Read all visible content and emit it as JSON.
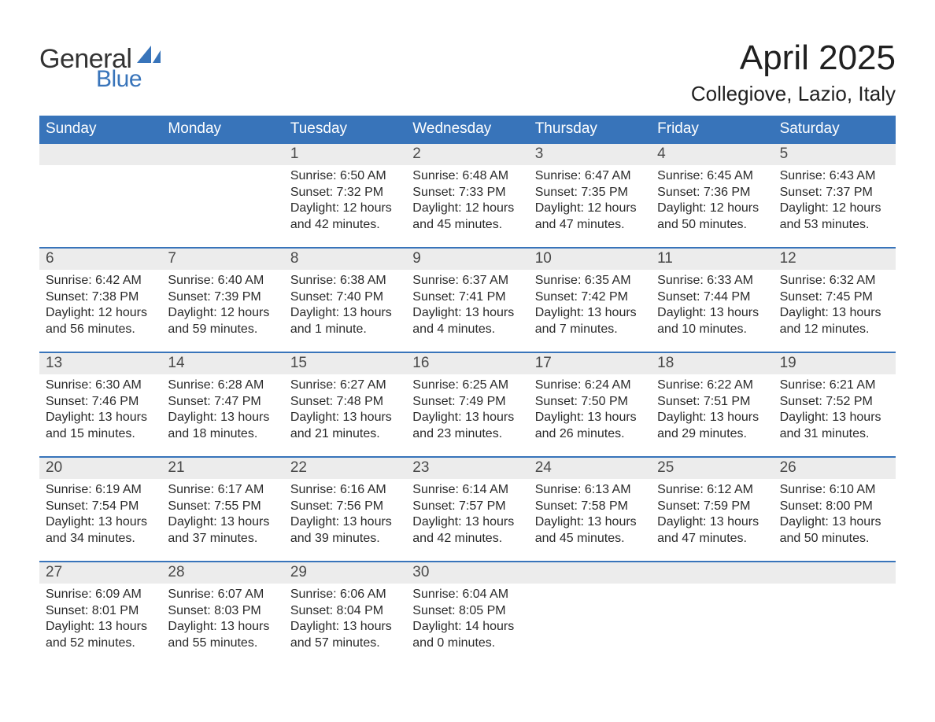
{
  "logo": {
    "general": "General",
    "blue": "Blue",
    "brand_color": "#3874ba"
  },
  "title": "April 2025",
  "location": "Collegiove, Lazio, Italy",
  "colors": {
    "header_bg": "#3874ba",
    "header_text": "#ffffff",
    "daynum_bg": "#ececec",
    "daynum_text": "#4a4a4a",
    "body_text": "#2a2a2a",
    "rule": "#3874ba",
    "page_bg": "#ffffff"
  },
  "typography": {
    "title_fontsize": 44,
    "location_fontsize": 26,
    "weekday_fontsize": 19,
    "daynum_fontsize": 19,
    "body_fontsize": 16,
    "font_family": "Arial"
  },
  "weekdays": [
    "Sunday",
    "Monday",
    "Tuesday",
    "Wednesday",
    "Thursday",
    "Friday",
    "Saturday"
  ],
  "weeks": [
    [
      {
        "day": "",
        "sunrise": "",
        "sunset": "",
        "daylight": ""
      },
      {
        "day": "",
        "sunrise": "",
        "sunset": "",
        "daylight": ""
      },
      {
        "day": "1",
        "sunrise": "Sunrise: 6:50 AM",
        "sunset": "Sunset: 7:32 PM",
        "daylight": "Daylight: 12 hours and 42 minutes."
      },
      {
        "day": "2",
        "sunrise": "Sunrise: 6:48 AM",
        "sunset": "Sunset: 7:33 PM",
        "daylight": "Daylight: 12 hours and 45 minutes."
      },
      {
        "day": "3",
        "sunrise": "Sunrise: 6:47 AM",
        "sunset": "Sunset: 7:35 PM",
        "daylight": "Daylight: 12 hours and 47 minutes."
      },
      {
        "day": "4",
        "sunrise": "Sunrise: 6:45 AM",
        "sunset": "Sunset: 7:36 PM",
        "daylight": "Daylight: 12 hours and 50 minutes."
      },
      {
        "day": "5",
        "sunrise": "Sunrise: 6:43 AM",
        "sunset": "Sunset: 7:37 PM",
        "daylight": "Daylight: 12 hours and 53 minutes."
      }
    ],
    [
      {
        "day": "6",
        "sunrise": "Sunrise: 6:42 AM",
        "sunset": "Sunset: 7:38 PM",
        "daylight": "Daylight: 12 hours and 56 minutes."
      },
      {
        "day": "7",
        "sunrise": "Sunrise: 6:40 AM",
        "sunset": "Sunset: 7:39 PM",
        "daylight": "Daylight: 12 hours and 59 minutes."
      },
      {
        "day": "8",
        "sunrise": "Sunrise: 6:38 AM",
        "sunset": "Sunset: 7:40 PM",
        "daylight": "Daylight: 13 hours and 1 minute."
      },
      {
        "day": "9",
        "sunrise": "Sunrise: 6:37 AM",
        "sunset": "Sunset: 7:41 PM",
        "daylight": "Daylight: 13 hours and 4 minutes."
      },
      {
        "day": "10",
        "sunrise": "Sunrise: 6:35 AM",
        "sunset": "Sunset: 7:42 PM",
        "daylight": "Daylight: 13 hours and 7 minutes."
      },
      {
        "day": "11",
        "sunrise": "Sunrise: 6:33 AM",
        "sunset": "Sunset: 7:44 PM",
        "daylight": "Daylight: 13 hours and 10 minutes."
      },
      {
        "day": "12",
        "sunrise": "Sunrise: 6:32 AM",
        "sunset": "Sunset: 7:45 PM",
        "daylight": "Daylight: 13 hours and 12 minutes."
      }
    ],
    [
      {
        "day": "13",
        "sunrise": "Sunrise: 6:30 AM",
        "sunset": "Sunset: 7:46 PM",
        "daylight": "Daylight: 13 hours and 15 minutes."
      },
      {
        "day": "14",
        "sunrise": "Sunrise: 6:28 AM",
        "sunset": "Sunset: 7:47 PM",
        "daylight": "Daylight: 13 hours and 18 minutes."
      },
      {
        "day": "15",
        "sunrise": "Sunrise: 6:27 AM",
        "sunset": "Sunset: 7:48 PM",
        "daylight": "Daylight: 13 hours and 21 minutes."
      },
      {
        "day": "16",
        "sunrise": "Sunrise: 6:25 AM",
        "sunset": "Sunset: 7:49 PM",
        "daylight": "Daylight: 13 hours and 23 minutes."
      },
      {
        "day": "17",
        "sunrise": "Sunrise: 6:24 AM",
        "sunset": "Sunset: 7:50 PM",
        "daylight": "Daylight: 13 hours and 26 minutes."
      },
      {
        "day": "18",
        "sunrise": "Sunrise: 6:22 AM",
        "sunset": "Sunset: 7:51 PM",
        "daylight": "Daylight: 13 hours and 29 minutes."
      },
      {
        "day": "19",
        "sunrise": "Sunrise: 6:21 AM",
        "sunset": "Sunset: 7:52 PM",
        "daylight": "Daylight: 13 hours and 31 minutes."
      }
    ],
    [
      {
        "day": "20",
        "sunrise": "Sunrise: 6:19 AM",
        "sunset": "Sunset: 7:54 PM",
        "daylight": "Daylight: 13 hours and 34 minutes."
      },
      {
        "day": "21",
        "sunrise": "Sunrise: 6:17 AM",
        "sunset": "Sunset: 7:55 PM",
        "daylight": "Daylight: 13 hours and 37 minutes."
      },
      {
        "day": "22",
        "sunrise": "Sunrise: 6:16 AM",
        "sunset": "Sunset: 7:56 PM",
        "daylight": "Daylight: 13 hours and 39 minutes."
      },
      {
        "day": "23",
        "sunrise": "Sunrise: 6:14 AM",
        "sunset": "Sunset: 7:57 PM",
        "daylight": "Daylight: 13 hours and 42 minutes."
      },
      {
        "day": "24",
        "sunrise": "Sunrise: 6:13 AM",
        "sunset": "Sunset: 7:58 PM",
        "daylight": "Daylight: 13 hours and 45 minutes."
      },
      {
        "day": "25",
        "sunrise": "Sunrise: 6:12 AM",
        "sunset": "Sunset: 7:59 PM",
        "daylight": "Daylight: 13 hours and 47 minutes."
      },
      {
        "day": "26",
        "sunrise": "Sunrise: 6:10 AM",
        "sunset": "Sunset: 8:00 PM",
        "daylight": "Daylight: 13 hours and 50 minutes."
      }
    ],
    [
      {
        "day": "27",
        "sunrise": "Sunrise: 6:09 AM",
        "sunset": "Sunset: 8:01 PM",
        "daylight": "Daylight: 13 hours and 52 minutes."
      },
      {
        "day": "28",
        "sunrise": "Sunrise: 6:07 AM",
        "sunset": "Sunset: 8:03 PM",
        "daylight": "Daylight: 13 hours and 55 minutes."
      },
      {
        "day": "29",
        "sunrise": "Sunrise: 6:06 AM",
        "sunset": "Sunset: 8:04 PM",
        "daylight": "Daylight: 13 hours and 57 minutes."
      },
      {
        "day": "30",
        "sunrise": "Sunrise: 6:04 AM",
        "sunset": "Sunset: 8:05 PM",
        "daylight": "Daylight: 14 hours and 0 minutes."
      },
      {
        "day": "",
        "sunrise": "",
        "sunset": "",
        "daylight": ""
      },
      {
        "day": "",
        "sunrise": "",
        "sunset": "",
        "daylight": ""
      },
      {
        "day": "",
        "sunrise": "",
        "sunset": "",
        "daylight": ""
      }
    ]
  ]
}
